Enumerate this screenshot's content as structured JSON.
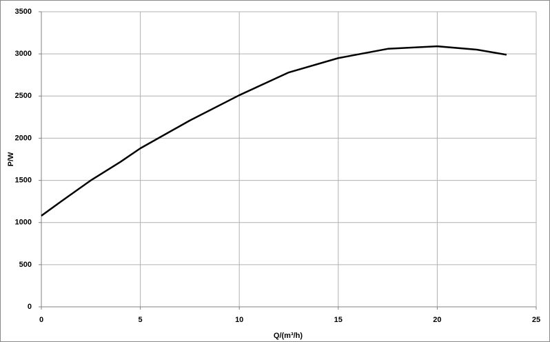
{
  "chart_data": {
    "type": "line",
    "x_label": "Q/(m³/h)",
    "y_label": "P/W",
    "x": [
      0,
      1,
      2.5,
      4,
      5,
      7.5,
      10,
      12.5,
      15,
      17.5,
      20,
      22,
      23.5
    ],
    "series": [
      {
        "color": "#000000",
        "values": [
          1080,
          1250,
          1500,
          1720,
          1880,
          2210,
          2510,
          2780,
          2950,
          3060,
          3090,
          3050,
          2990
        ]
      }
    ],
    "xlim": [
      0,
      25
    ],
    "xticks": [
      0,
      5,
      10,
      15,
      20,
      25
    ],
    "ylim": [
      0,
      3500
    ],
    "yticks": [
      0,
      500,
      1000,
      1500,
      2000,
      2500,
      3000,
      3500
    ],
    "grid": true
  }
}
